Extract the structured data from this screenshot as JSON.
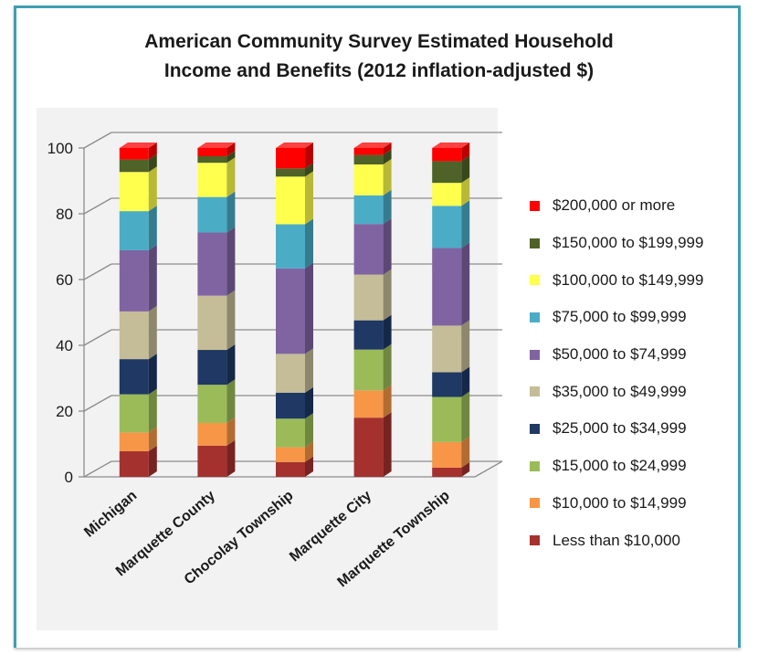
{
  "chart_data": {
    "type": "bar",
    "stacked": true,
    "three_d": true,
    "title": "American Community Survey Estimated Household Income and Benefits (2012 inflation-adjusted $)",
    "title_lines": [
      "American Community Survey Estimated Household",
      "Income and Benefits (2012 inflation-adjusted $)"
    ],
    "categories": [
      "Michigan",
      "Marquette County",
      "Chocolay Township",
      "Marquette City",
      "Marquette Township"
    ],
    "ylim": [
      0,
      100
    ],
    "yticks": [
      "0",
      "20",
      "40",
      "60",
      "80",
      "100"
    ],
    "grid": true,
    "legend_position": "right",
    "series": [
      {
        "name": "Less than $10,000",
        "color": "#a5312f",
        "values": [
          7.8,
          9.5,
          4.5,
          18.0,
          2.8
        ]
      },
      {
        "name": "$10,000 to $14,999",
        "color": "#f79646",
        "values": [
          5.7,
          6.9,
          4.5,
          8.3,
          7.8
        ]
      },
      {
        "name": "$15,000 to $24,999",
        "color": "#9bbb59",
        "values": [
          11.6,
          11.6,
          8.7,
          12.4,
          13.7
        ]
      },
      {
        "name": "$25,000 to $34,999",
        "color": "#1f3864",
        "values": [
          10.7,
          10.6,
          7.9,
          8.9,
          7.5
        ]
      },
      {
        "name": "$35,000 to $49,999",
        "color": "#c4bd97",
        "values": [
          14.5,
          16.5,
          11.8,
          13.9,
          14.2
        ]
      },
      {
        "name": "$50,000 to $74,999",
        "color": "#8064a2",
        "values": [
          18.6,
          19.2,
          26.0,
          15.4,
          23.6
        ]
      },
      {
        "name": "$75,000 to $99,999",
        "color": "#4bacc6",
        "values": [
          11.9,
          10.8,
          13.4,
          8.7,
          12.8
        ]
      },
      {
        "name": "$100,000 to $149,999",
        "color": "#ffff4d",
        "values": [
          11.9,
          10.4,
          14.5,
          9.4,
          7.0
        ]
      },
      {
        "name": "$150,000 to $199,999",
        "color": "#4f6228",
        "values": [
          3.8,
          2.0,
          2.5,
          2.9,
          6.6
        ]
      },
      {
        "name": "$200,000 or more",
        "color": "#ff0000",
        "values": [
          3.5,
          2.5,
          6.2,
          2.1,
          4.0
        ]
      }
    ]
  }
}
